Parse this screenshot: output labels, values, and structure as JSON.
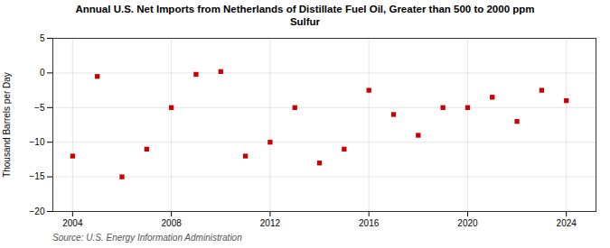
{
  "chart_data": {
    "type": "scatter",
    "title": "Annual U.S. Net Imports from Netherlands of Distillate Fuel Oil, Greater than 500 to 2000 ppm\nSulfur",
    "ylabel": "Thousand Barrels per Day",
    "annotations": [
      "Source: U.S. Energy Information Administration"
    ],
    "x": [
      2004,
      2005,
      2006,
      2007,
      2008,
      2009,
      2010,
      2011,
      2012,
      2013,
      2014,
      2015,
      2016,
      2017,
      2018,
      2019,
      2020,
      2021,
      2022,
      2023,
      2024
    ],
    "values": [
      -12.0,
      -0.5,
      -15.0,
      -11.0,
      -5.0,
      -0.2,
      0.2,
      -12.0,
      -10.0,
      -5.0,
      -13.0,
      -11.0,
      -2.5,
      -6.0,
      -9.0,
      -5.0,
      -5.0,
      -3.5,
      -7.0,
      -2.5,
      -4.0
    ],
    "color": "#cc0000",
    "marker": "square",
    "xlim": [
      2003.2,
      2025.2
    ],
    "xticks": [
      2004,
      2008,
      2012,
      2016,
      2020,
      2024
    ],
    "ylim": [
      -20,
      5
    ],
    "yticks": [
      -20,
      -15,
      -10,
      -5,
      0,
      5
    ],
    "grid": true
  }
}
